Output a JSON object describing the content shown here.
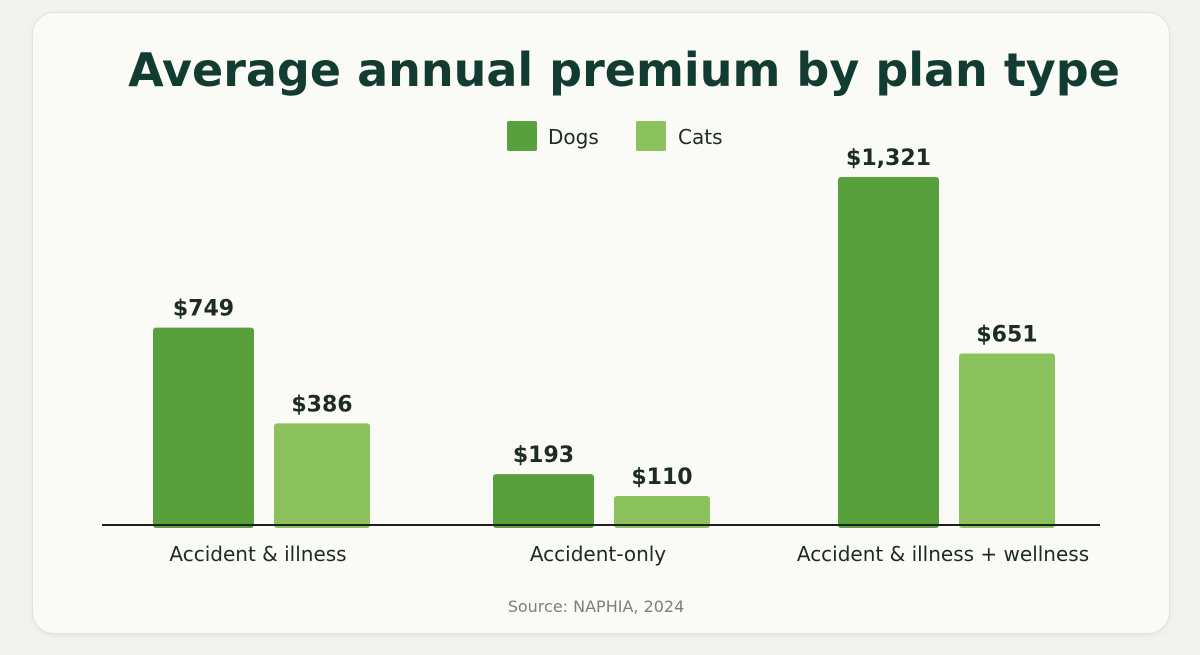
{
  "chart_data": {
    "type": "bar",
    "title": "Average annual premium by plan type",
    "categories": [
      "Accident & illness",
      "Accident-only",
      "Accident & illness + wellness"
    ],
    "series": [
      {
        "name": "Dogs",
        "color": "#58a03c",
        "values": [
          749,
          193,
          1321
        ],
        "labels": [
          "$749",
          "$193",
          "$1,321"
        ]
      },
      {
        "name": "Cats",
        "color": "#8cc25e",
        "values": [
          386,
          110,
          651
        ],
        "labels": [
          "$386",
          "$110",
          "$651"
        ]
      }
    ],
    "ylim": [
      0,
      1321
    ],
    "legend_position": "top-center",
    "grid": false,
    "source": "Source: NAPHIA, 2024"
  }
}
